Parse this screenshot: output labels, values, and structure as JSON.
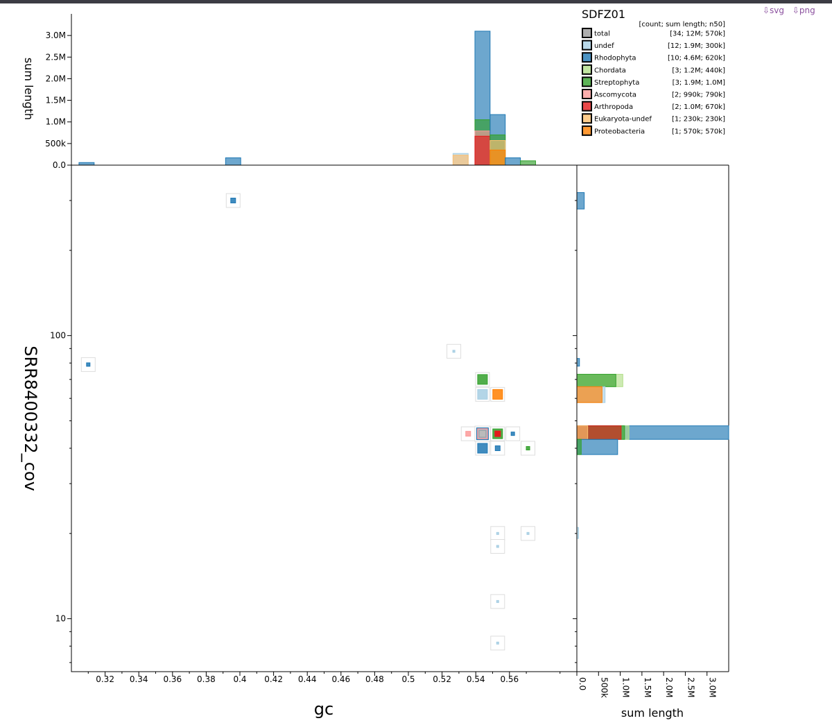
{
  "download": {
    "svg": "⇩svg",
    "png": "⇩png"
  },
  "legend": {
    "title": "SDFZ01",
    "header": "[count; sum length; n50]",
    "items": [
      {
        "name": "total",
        "stats": "[34; 12M; 570k]",
        "color": "#999999"
      },
      {
        "name": "undef",
        "stats": "[12; 1.9M; 300k]",
        "color": "#a6cee3"
      },
      {
        "name": "Rhodophyta",
        "stats": "[10; 4.6M; 620k]",
        "color": "#1f78b4"
      },
      {
        "name": "Chordata",
        "stats": "[3; 1.2M; 440k]",
        "color": "#b2df8a"
      },
      {
        "name": "Streptophyta",
        "stats": "[3; 1.9M; 1.0M]",
        "color": "#33a02c"
      },
      {
        "name": "Ascomycota",
        "stats": "[2; 990k; 790k]",
        "color": "#fb9a99"
      },
      {
        "name": "Arthropoda",
        "stats": "[2; 1.0M; 670k]",
        "color": "#e31a1c"
      },
      {
        "name": "Eukaryota-undef",
        "stats": "[1; 230k; 230k]",
        "color": "#fdbf6f"
      },
      {
        "name": "Proteobacteria",
        "stats": "[1; 570k; 570k]",
        "color": "#ff7f00"
      }
    ]
  },
  "chart_data": {
    "type": "scatter",
    "xlabel": "gc",
    "ylabel": "SRR8400332_cov",
    "xlim": [
      0.3,
      0.6
    ],
    "x_ticks": [
      "0.32",
      "0.34",
      "0.36",
      "0.38",
      "0.4",
      "0.42",
      "0.44",
      "0.46",
      "0.48",
      "0.5",
      "0.52",
      "0.54",
      "0.56"
    ],
    "y_scale": "log",
    "ylim": [
      6.5,
      400
    ],
    "y_ticks": [
      "10",
      "100"
    ],
    "points": [
      {
        "gc": 0.396,
        "cov": 300,
        "category": "Rhodophyta",
        "size": "small"
      },
      {
        "gc": 0.31,
        "cov": 79,
        "category": "Rhodophyta",
        "size": "tiny"
      },
      {
        "gc": 0.527,
        "cov": 88,
        "category": "undef",
        "size": "dot"
      },
      {
        "gc": 0.544,
        "cov": 70,
        "category": "Streptophyta",
        "size": "medium"
      },
      {
        "gc": 0.544,
        "cov": 62,
        "category": "undef",
        "size": "medium"
      },
      {
        "gc": 0.553,
        "cov": 62,
        "category": "Proteobacteria",
        "size": "medium"
      },
      {
        "gc": 0.5355,
        "cov": 45,
        "category": "Ascomycota",
        "size": "small"
      },
      {
        "gc": 0.544,
        "cov": 45,
        "category": "Rhodophyta",
        "size": "large"
      },
      {
        "gc": 0.553,
        "cov": 45,
        "category": "Streptophyta",
        "size": "medium"
      },
      {
        "gc": 0.562,
        "cov": 45,
        "category": "Rhodophyta",
        "size": "tiny"
      },
      {
        "gc": 0.544,
        "cov": 40,
        "category": "Rhodophyta",
        "size": "medium"
      },
      {
        "gc": 0.553,
        "cov": 40,
        "category": "Rhodophyta",
        "size": "small"
      },
      {
        "gc": 0.571,
        "cov": 40,
        "category": "Streptophyta",
        "size": "tiny"
      },
      {
        "gc": 0.553,
        "cov": 20,
        "category": "undef",
        "size": "dot"
      },
      {
        "gc": 0.571,
        "cov": 20,
        "category": "undef",
        "size": "dot"
      },
      {
        "gc": 0.553,
        "cov": 18,
        "category": "undef",
        "size": "dot"
      },
      {
        "gc": 0.553,
        "cov": 11.5,
        "category": "undef",
        "size": "dot"
      },
      {
        "gc": 0.553,
        "cov": 8.2,
        "category": "undef",
        "size": "dot"
      }
    ],
    "gc_histogram": {
      "ylabel": "sum length",
      "ylim": [
        0,
        3500000
      ],
      "y_ticks": [
        {
          "label": "0.0",
          "value": 0
        },
        {
          "label": "500k",
          "value": 500000
        },
        {
          "label": "1.0M",
          "value": 1000000
        },
        {
          "label": "1.5M",
          "value": 1500000
        },
        {
          "label": "2.0M",
          "value": 2000000
        },
        {
          "label": "2.5M",
          "value": 2500000
        },
        {
          "label": "3.0M",
          "value": 3000000
        }
      ],
      "bins": [
        {
          "x0": 0.3045,
          "x1": 0.3135,
          "layers": [
            {
              "c": "Rhodophyta",
              "v": 60000
            }
          ]
        },
        {
          "x0": 0.3915,
          "x1": 0.4005,
          "layers": [
            {
              "c": "Rhodophyta",
              "v": 170000
            }
          ]
        },
        {
          "x0": 0.5265,
          "x1": 0.5355,
          "layers": [
            {
              "c": "undef",
              "v": 270000
            },
            {
              "c": "Eukaryota-undef",
              "v": 230000
            }
          ]
        },
        {
          "x0": 0.5395,
          "x1": 0.5485,
          "layers": [
            {
              "c": "Rhodophyta",
              "v": 3100000
            },
            {
              "c": "Streptophyta",
              "v": 1050000
            },
            {
              "c": "Ascomycota",
              "v": 790000
            },
            {
              "c": "Arthropoda",
              "v": 670000
            }
          ]
        },
        {
          "x0": 0.5485,
          "x1": 0.5575,
          "layers": [
            {
              "c": "Rhodophyta",
              "v": 1170000
            },
            {
              "c": "Streptophyta",
              "v": 700000
            },
            {
              "c": "Eukaryota-undef",
              "v": 570000
            },
            {
              "c": "Proteobacteria",
              "v": 350000
            }
          ]
        },
        {
          "x0": 0.5575,
          "x1": 0.5665,
          "layers": [
            {
              "c": "Rhodophyta",
              "v": 170000
            }
          ]
        },
        {
          "x0": 0.5665,
          "x1": 0.5755,
          "layers": [
            {
              "c": "Streptophyta",
              "v": 100000
            }
          ]
        }
      ]
    },
    "cov_histogram": {
      "xlabel": "sum length",
      "xlim": [
        0,
        3500000
      ],
      "x_ticks": [
        {
          "label": "0.0",
          "value": 0
        },
        {
          "label": "500k",
          "value": 500000
        },
        {
          "label": "1.0M",
          "value": 1000000
        },
        {
          "label": "1.5M",
          "value": 1500000
        },
        {
          "label": "2.0M",
          "value": 2000000
        },
        {
          "label": "2.5M",
          "value": 2500000
        },
        {
          "label": "3.0M",
          "value": 3000000
        }
      ],
      "bins": [
        {
          "cov_lo": 280,
          "cov_hi": 320,
          "layers": [
            {
              "c": "Rhodophyta",
              "v": 170000
            }
          ]
        },
        {
          "cov_lo": 78,
          "cov_hi": 83,
          "layers": [
            {
              "c": "Rhodophyta",
              "v": 60000
            }
          ]
        },
        {
          "cov_lo": 66,
          "cov_hi": 73,
          "layers": [
            {
              "c": "Chordata",
              "v": 1060000
            },
            {
              "c": "Streptophyta",
              "v": 900000
            }
          ]
        },
        {
          "cov_lo": 58,
          "cov_hi": 66,
          "layers": [
            {
              "c": "undef",
              "v": 650000
            },
            {
              "c": "Proteobacteria",
              "v": 580000
            }
          ]
        },
        {
          "cov_lo": 43,
          "cov_hi": 48,
          "layers": [
            {
              "c": "Rhodophyta",
              "v": 3500000
            },
            {
              "c": "Chordata",
              "v": 1200000
            },
            {
              "c": "Streptophyta",
              "v": 1100000
            },
            {
              "c": "Arthropoda",
              "v": 1020000
            },
            {
              "c": "Eukaryota-undef",
              "v": 250000
            }
          ]
        },
        {
          "cov_lo": 38,
          "cov_hi": 43,
          "layers": [
            {
              "c": "Rhodophyta",
              "v": 940000
            },
            {
              "c": "Streptophyta",
              "v": 100000
            }
          ]
        },
        {
          "cov_lo": 19.2,
          "cov_hi": 21,
          "layers": [
            {
              "c": "undef",
              "v": 40000
            }
          ]
        }
      ]
    }
  }
}
